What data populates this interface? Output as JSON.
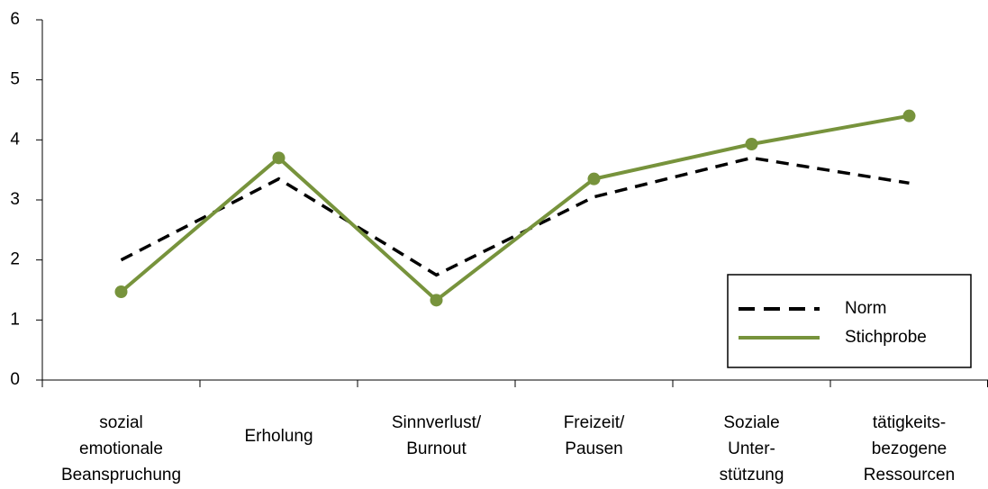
{
  "chart_data": {
    "type": "line",
    "categories": [
      "sozial\nemotionale\nBeanspruchung",
      "Erholung",
      "Sinnverlust/\nBurnout",
      "Freizeit/\nPausen",
      "Soziale\nUnter-\nstützung",
      "tätigkeits-\nbezogene\nRessourcen"
    ],
    "series": [
      {
        "name": "Norm",
        "color": "#000000",
        "dash": true,
        "markers": false,
        "values": [
          2.0,
          3.35,
          1.75,
          3.05,
          3.7,
          3.28
        ]
      },
      {
        "name": "Stichprobe",
        "color": "#77933c",
        "dash": false,
        "markers": true,
        "values": [
          1.47,
          3.7,
          1.33,
          3.35,
          3.93,
          4.4
        ]
      }
    ],
    "ylim": [
      0,
      6
    ],
    "yticks": [
      0,
      1,
      2,
      3,
      4,
      5,
      6
    ],
    "legend": "lower right"
  }
}
